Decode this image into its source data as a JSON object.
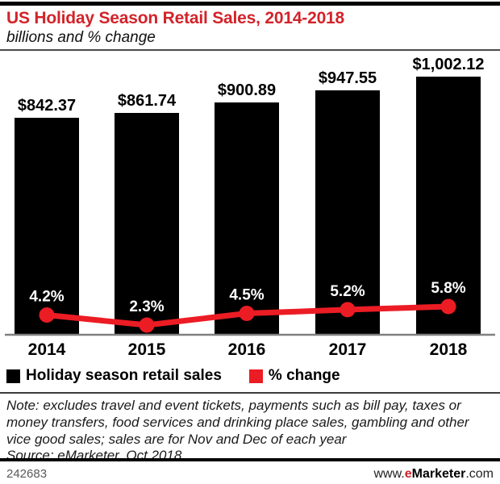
{
  "title": "US Holiday Season Retail Sales, 2014-2018",
  "subtitle": "billions and % change",
  "colors": {
    "brand_red": "#d2232a",
    "line_red": "#ec1c24",
    "bar_black": "#000000",
    "axis_gray": "#808080",
    "pct_label_white": "#ffffff"
  },
  "chart_data": {
    "type": "bar",
    "categories": [
      "2014",
      "2015",
      "2016",
      "2017",
      "2018"
    ],
    "series": [
      {
        "name": "Holiday season retail sales",
        "type": "bar",
        "color": "#000000",
        "values": [
          842.37,
          861.74,
          900.89,
          947.55,
          1002.12
        ],
        "labels": [
          "$842.37",
          "$861.74",
          "$900.89",
          "$947.55",
          "$1,002.12"
        ]
      },
      {
        "name": "% change",
        "type": "line",
        "color": "#ec1c24",
        "values": [
          4.2,
          2.3,
          4.5,
          5.2,
          5.8
        ],
        "labels": [
          "4.2%",
          "2.3%",
          "4.5%",
          "5.2%",
          "5.8%"
        ]
      }
    ],
    "title": "US Holiday Season Retail Sales, 2014-2018",
    "subtitle": "billions and % change",
    "xlabel": "",
    "ylabel": "",
    "value_axis_unit": "billions USD",
    "grid": false,
    "legend_position": "bottom"
  },
  "note": "Note: excludes travel and event tickets, payments such as bill pay, taxes or money transfers, food services and drinking place sales, gambling and other vice good sales; sales are for Nov and Dec of each year",
  "source": "Source: eMarketer, Oct 2018",
  "footer": {
    "chart_id": "242683",
    "website_www": "www.",
    "website_e": "e",
    "website_marketer": "Marketer",
    "website_com": ".com"
  }
}
